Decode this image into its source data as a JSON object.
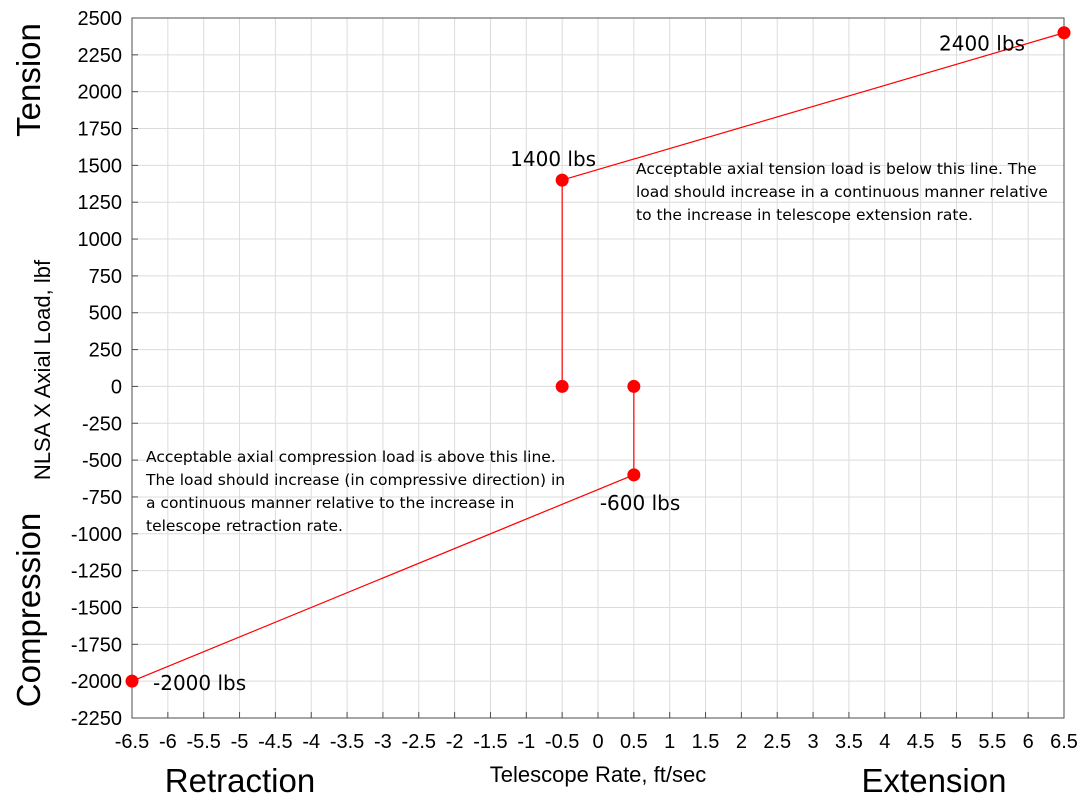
{
  "chart_data": {
    "type": "line",
    "xlabel": "Telescope Rate, ft/sec",
    "ylabel": "NLSA X Axial Load, lbf",
    "xlim": [
      -6.5,
      6.5
    ],
    "ylim": [
      -2250,
      2500
    ],
    "x_ticks": [
      -6.5,
      -6,
      -5.5,
      -5,
      -4.5,
      -4,
      -3.5,
      -3,
      -2.5,
      -2,
      -1.5,
      -1,
      -0.5,
      0,
      0.5,
      1,
      1.5,
      2,
      2.5,
      3,
      3.5,
      4,
      4.5,
      5,
      5.5,
      6,
      6.5
    ],
    "x_tick_labels": [
      "-6.5",
      "-6",
      "-5.5",
      "-5",
      "-4.5",
      "-4",
      "-3.5",
      "-3",
      "-2.5",
      "-2",
      "-1.5",
      "-1",
      "-0.5",
      "0",
      "0.5",
      "1",
      "1.5",
      "2",
      "2.5",
      "3",
      "3.5",
      "4",
      "4.5",
      "5",
      "5.5",
      "6",
      "6.5"
    ],
    "y_ticks": [
      2500,
      2250,
      2000,
      1750,
      1500,
      1250,
      1000,
      750,
      500,
      250,
      0,
      -250,
      -500,
      -750,
      -1000,
      -1250,
      -1500,
      -1750,
      -2000,
      -2250
    ],
    "y_tick_labels": [
      "2500",
      "2250",
      "2000",
      "1750",
      "1500",
      "1250",
      "1000",
      "750",
      "500",
      "250",
      "0",
      "-250",
      "-500",
      "-750",
      "-1000",
      "-1250",
      "-1500",
      "-1750",
      "-2000",
      "-2250"
    ],
    "grid": true,
    "line_color": "#ff0000",
    "series": [
      {
        "x": [
          -0.5,
          -0.5,
          6.5
        ],
        "y": [
          0,
          1400,
          2400
        ]
      },
      {
        "x": [
          -6.5,
          0.5,
          0.5
        ],
        "y": [
          -2000,
          -600,
          0
        ]
      }
    ],
    "point_labels": [
      {
        "text": "2400 lbs",
        "x": 6.5,
        "y": 2400
      },
      {
        "text": "1400 lbs",
        "x": -0.5,
        "y": 1400
      },
      {
        "text": "-600 lbs",
        "x": 0.5,
        "y": -600
      },
      {
        "text": "-2000 lbs",
        "x": -6.5,
        "y": -2000
      }
    ],
    "annotations": [
      {
        "lines": [
          "Acceptable axial tension load is below this line. The",
          "load should increase in a continuous manner relative",
          "to the increase in telescope extension rate."
        ]
      },
      {
        "lines": [
          "Acceptable axial compression load is above this line.",
          "The load should increase (in compressive direction) in",
          "a continuous manner relative to the increase in",
          "telescope retraction rate."
        ]
      }
    ],
    "side_labels": {
      "top_left": "Tension",
      "bottom_left": "Compression",
      "bottom_left_x": "Retraction",
      "bottom_right_x": "Extension"
    }
  }
}
